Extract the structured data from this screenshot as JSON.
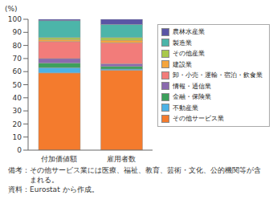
{
  "chart_data": {
    "type": "bar",
    "stacked": true,
    "y_label": "(%)",
    "categories": [
      "付加価値額",
      "雇用者数"
    ],
    "ylim": [
      0,
      100
    ],
    "yticks": [
      0,
      10,
      20,
      30,
      40,
      50,
      60,
      70,
      80,
      90,
      100
    ],
    "grid": false,
    "legend": "right",
    "series": [
      {
        "name": "農林水産業",
        "color": "#5a55a5",
        "values": [
          1,
          4
        ]
      },
      {
        "name": "製造業",
        "color": "#4cb5a9",
        "values": [
          13,
          10
        ]
      },
      {
        "name": "その他産業",
        "color": "#a9c94b",
        "values": [
          1.5,
          2
        ]
      },
      {
        "name": "建設業",
        "color": "#f5a53d",
        "values": [
          1.5,
          2
        ]
      },
      {
        "name": "卸・小売・運輸・宿泊・飲食業",
        "color": "#f27c7a",
        "values": [
          13,
          16
        ]
      },
      {
        "name": "情報・通信業",
        "color": "#8a6aae",
        "values": [
          3.5,
          2
        ]
      },
      {
        "name": "金融・保険業",
        "color": "#3da05b",
        "values": [
          3.5,
          2
        ]
      },
      {
        "name": "不動産業",
        "color": "#4db2e6",
        "values": [
          4,
          1
        ]
      },
      {
        "name": "その他サービス業",
        "color": "#f47b2d",
        "values": [
          59,
          61
        ]
      }
    ],
    "annotations": [
      "備考：その他サービス業には医療、福祉、教育、芸術・文化、公的機関等が含まれる。",
      "資料：Eurostat から作成。"
    ]
  }
}
